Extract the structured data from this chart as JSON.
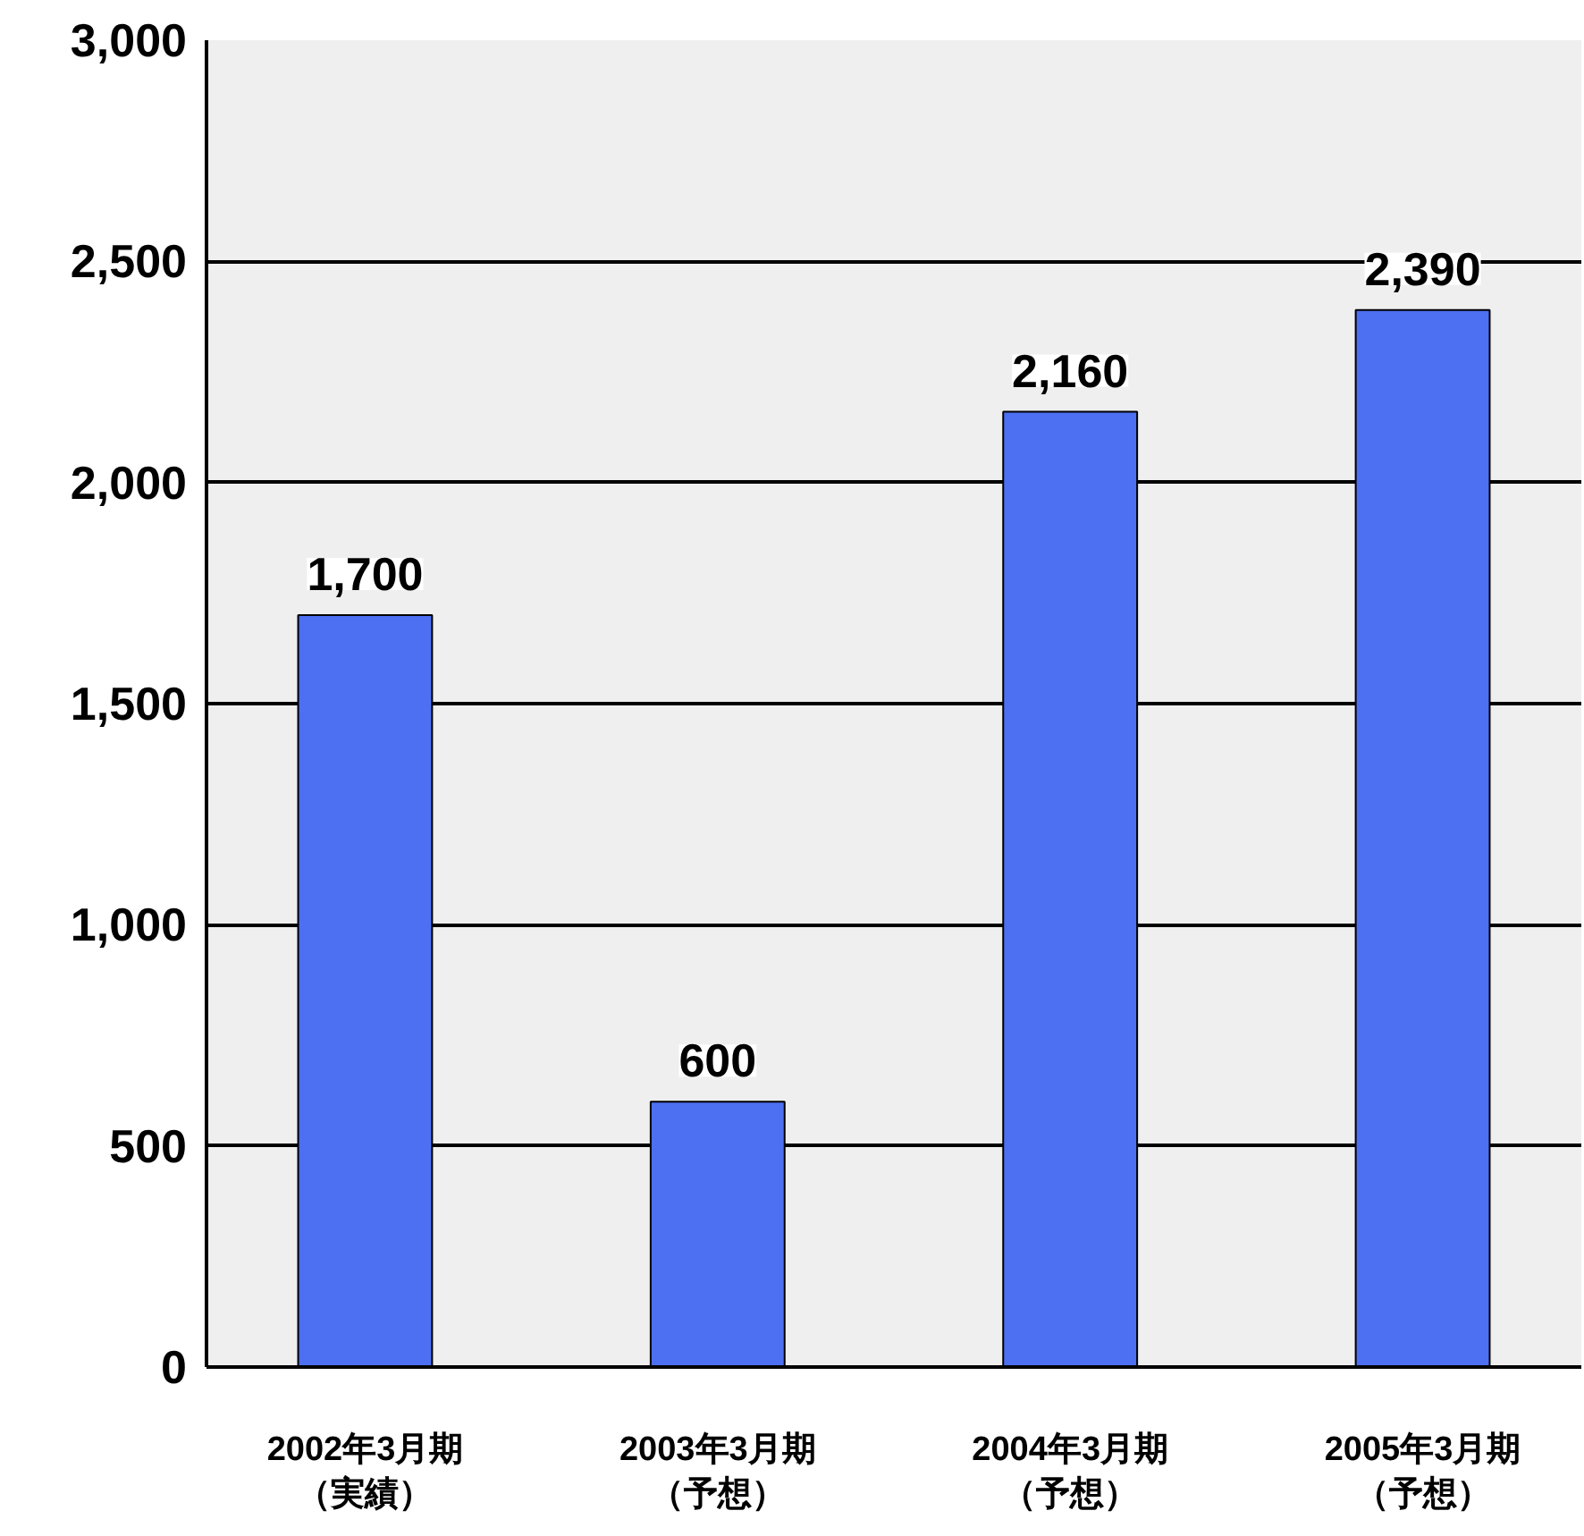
{
  "chart_data": {
    "type": "bar",
    "categories": [
      "2002年3月期（実績）",
      "2003年3月期（予想）",
      "2004年3月期（予想）",
      "2005年3月期（予想）"
    ],
    "values": [
      1700,
      600,
      2160,
      2390
    ],
    "value_labels": [
      "1,700",
      "600",
      "2,160",
      "2,390"
    ],
    "color": "#4d6ff2",
    "ylim": [
      0,
      3000
    ],
    "yticks": [
      {
        "value": 0,
        "label": "0"
      },
      {
        "value": 500,
        "label": "500"
      },
      {
        "value": 1000,
        "label": "1,000"
      },
      {
        "value": 1500,
        "label": "1,500"
      },
      {
        "value": 2000,
        "label": "2,000"
      },
      {
        "value": 2500,
        "label": "2,500"
      },
      {
        "value": 3000,
        "label": "3,000"
      }
    ],
    "grid": "y"
  }
}
